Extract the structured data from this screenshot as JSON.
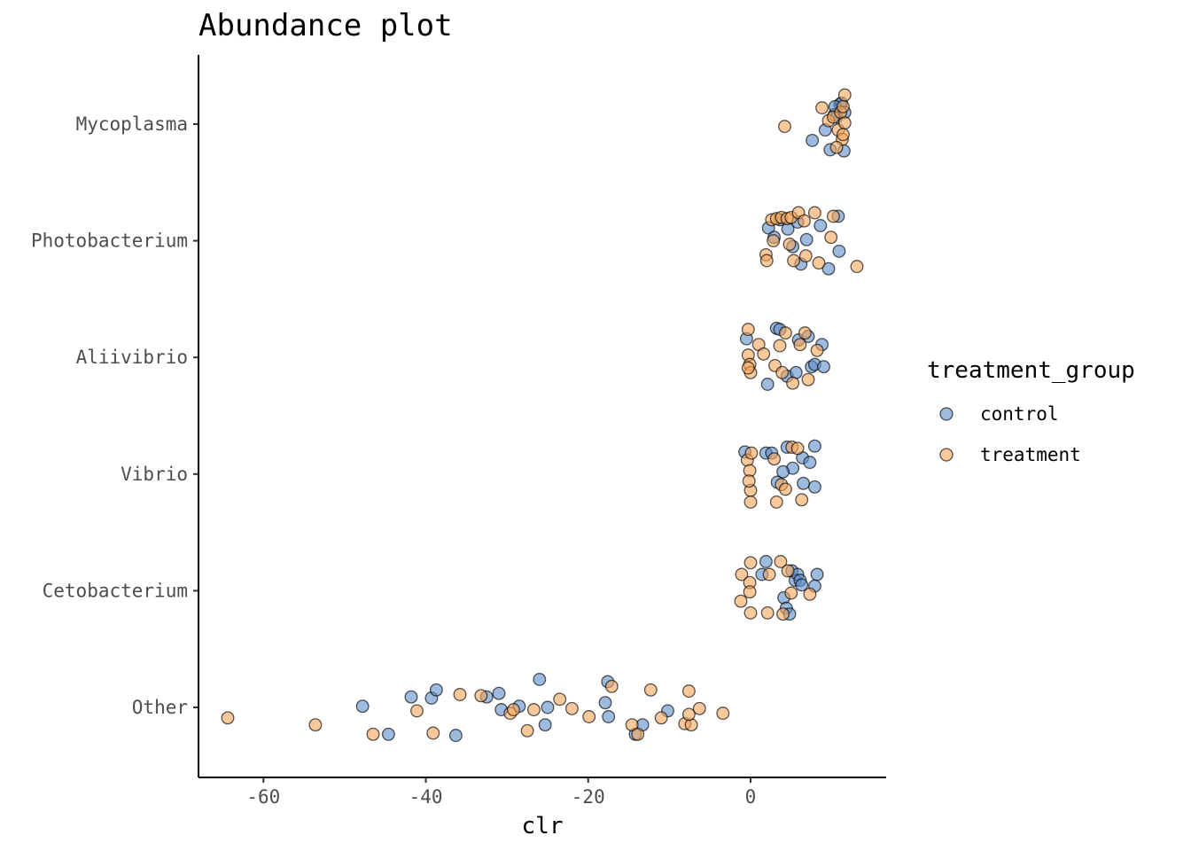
{
  "chart_data": {
    "type": "scatter",
    "title": "Abundance plot",
    "xlabel": "clr",
    "ylabel": "",
    "xlim": [
      -68,
      16.7
    ],
    "x_ticks": [
      -60,
      -40,
      -20,
      0
    ],
    "x_tick_labels": [
      "-60",
      "-40",
      "-20",
      "0"
    ],
    "categories": [
      "Mycoplasma",
      "Photobacterium",
      "Aliivibrio",
      "Vibrio",
      "Cetobacterium",
      "Other"
    ],
    "grid": false,
    "legend": {
      "title": "treatment_group",
      "position": "right"
    },
    "note": "y is jittered within each category (offset in category units)",
    "series": [
      {
        "name": "control",
        "color": "#5b8cc9",
        "points": [
          {
            "category": "Mycoplasma",
            "x": 7.6,
            "y": -0.14
          },
          {
            "category": "Mycoplasma",
            "x": 9.2,
            "y": -0.05
          },
          {
            "category": "Mycoplasma",
            "x": 9.8,
            "y": -0.22
          },
          {
            "category": "Mycoplasma",
            "x": 10.3,
            "y": 0.08
          },
          {
            "category": "Mycoplasma",
            "x": 10.6,
            "y": 0.06
          },
          {
            "category": "Mycoplasma",
            "x": 11.0,
            "y": 0.17
          },
          {
            "category": "Mycoplasma",
            "x": 11.2,
            "y": 0.18
          },
          {
            "category": "Mycoplasma",
            "x": 11.5,
            "y": -0.23
          },
          {
            "category": "Mycoplasma",
            "x": 10.4,
            "y": 0.15
          },
          {
            "category": "Mycoplasma",
            "x": 11.6,
            "y": 0.1
          },
          {
            "category": "Photobacterium",
            "x": 2.2,
            "y": 0.11
          },
          {
            "category": "Photobacterium",
            "x": 2.9,
            "y": 0.03
          },
          {
            "category": "Photobacterium",
            "x": 3.6,
            "y": 0.18
          },
          {
            "category": "Photobacterium",
            "x": 4.6,
            "y": 0.1
          },
          {
            "category": "Photobacterium",
            "x": 5.2,
            "y": -0.05
          },
          {
            "category": "Photobacterium",
            "x": 5.8,
            "y": 0.16
          },
          {
            "category": "Photobacterium",
            "x": 6.2,
            "y": -0.2
          },
          {
            "category": "Photobacterium",
            "x": 6.9,
            "y": 0.01
          },
          {
            "category": "Photobacterium",
            "x": 8.6,
            "y": 0.13
          },
          {
            "category": "Photobacterium",
            "x": 9.6,
            "y": -0.24
          },
          {
            "category": "Photobacterium",
            "x": 10.9,
            "y": -0.09
          },
          {
            "category": "Photobacterium",
            "x": 10.8,
            "y": 0.21
          },
          {
            "category": "Aliivibrio",
            "x": -0.5,
            "y": 0.16
          },
          {
            "category": "Aliivibrio",
            "x": 2.1,
            "y": -0.23
          },
          {
            "category": "Aliivibrio",
            "x": 3.2,
            "y": 0.25
          },
          {
            "category": "Aliivibrio",
            "x": 3.6,
            "y": 0.24
          },
          {
            "category": "Aliivibrio",
            "x": 4.5,
            "y": -0.16
          },
          {
            "category": "Aliivibrio",
            "x": 5.6,
            "y": -0.13
          },
          {
            "category": "Aliivibrio",
            "x": 5.9,
            "y": 0.15
          },
          {
            "category": "Aliivibrio",
            "x": 7.5,
            "y": -0.08
          },
          {
            "category": "Aliivibrio",
            "x": 7.9,
            "y": -0.06
          },
          {
            "category": "Aliivibrio",
            "x": 8.8,
            "y": 0.11
          },
          {
            "category": "Aliivibrio",
            "x": 9.0,
            "y": -0.08
          },
          {
            "category": "Aliivibrio",
            "x": 7.1,
            "y": 0.18
          },
          {
            "category": "Vibrio",
            "x": -0.7,
            "y": 0.19
          },
          {
            "category": "Vibrio",
            "x": 1.9,
            "y": 0.18
          },
          {
            "category": "Vibrio",
            "x": 2.6,
            "y": 0.18
          },
          {
            "category": "Vibrio",
            "x": 3.3,
            "y": -0.07
          },
          {
            "category": "Vibrio",
            "x": 4.5,
            "y": 0.23
          },
          {
            "category": "Vibrio",
            "x": 5.2,
            "y": 0.05
          },
          {
            "category": "Vibrio",
            "x": 6.4,
            "y": 0.14
          },
          {
            "category": "Vibrio",
            "x": 6.5,
            "y": -0.08
          },
          {
            "category": "Vibrio",
            "x": 7.3,
            "y": 0.1
          },
          {
            "category": "Vibrio",
            "x": 7.9,
            "y": 0.24
          },
          {
            "category": "Vibrio",
            "x": 7.9,
            "y": -0.11
          },
          {
            "category": "Vibrio",
            "x": 4.0,
            "y": 0.02
          },
          {
            "category": "Cetobacterium",
            "x": 1.9,
            "y": 0.25
          },
          {
            "category": "Cetobacterium",
            "x": 1.4,
            "y": 0.14
          },
          {
            "category": "Cetobacterium",
            "x": 4.1,
            "y": -0.06
          },
          {
            "category": "Cetobacterium",
            "x": 4.4,
            "y": -0.15
          },
          {
            "category": "Cetobacterium",
            "x": 4.8,
            "y": -0.2
          },
          {
            "category": "Cetobacterium",
            "x": 5.1,
            "y": 0.17
          },
          {
            "category": "Cetobacterium",
            "x": 5.5,
            "y": 0.09
          },
          {
            "category": "Cetobacterium",
            "x": 5.8,
            "y": 0.14
          },
          {
            "category": "Cetobacterium",
            "x": 6.1,
            "y": 0.09
          },
          {
            "category": "Cetobacterium",
            "x": 6.3,
            "y": 0.05
          },
          {
            "category": "Cetobacterium",
            "x": 8.2,
            "y": 0.14
          },
          {
            "category": "Cetobacterium",
            "x": 7.9,
            "y": 0.04
          },
          {
            "category": "Other",
            "x": -47.8,
            "y": 0.01
          },
          {
            "category": "Other",
            "x": -44.6,
            "y": -0.23
          },
          {
            "category": "Other",
            "x": -41.8,
            "y": 0.09
          },
          {
            "category": "Other",
            "x": -39.3,
            "y": 0.08
          },
          {
            "category": "Other",
            "x": -38.7,
            "y": 0.15
          },
          {
            "category": "Other",
            "x": -36.3,
            "y": -0.24
          },
          {
            "category": "Other",
            "x": -32.5,
            "y": 0.09
          },
          {
            "category": "Other",
            "x": -31.0,
            "y": 0.12
          },
          {
            "category": "Other",
            "x": -30.7,
            "y": -0.02
          },
          {
            "category": "Other",
            "x": -28.5,
            "y": 0.01
          },
          {
            "category": "Other",
            "x": -26.0,
            "y": 0.24
          },
          {
            "category": "Other",
            "x": -25.3,
            "y": -0.15
          },
          {
            "category": "Other",
            "x": -25.0,
            "y": 0.0
          },
          {
            "category": "Other",
            "x": -17.9,
            "y": 0.04
          },
          {
            "category": "Other",
            "x": -17.6,
            "y": 0.22
          },
          {
            "category": "Other",
            "x": -17.5,
            "y": -0.08
          },
          {
            "category": "Other",
            "x": -14.2,
            "y": -0.23
          },
          {
            "category": "Other",
            "x": -13.3,
            "y": -0.15
          },
          {
            "category": "Other",
            "x": -10.2,
            "y": -0.03
          }
        ]
      },
      {
        "name": "treatment",
        "color": "#f5a55a",
        "points": [
          {
            "category": "Mycoplasma",
            "x": 4.2,
            "y": -0.02
          },
          {
            "category": "Mycoplasma",
            "x": 8.8,
            "y": 0.14
          },
          {
            "category": "Mycoplasma",
            "x": 9.6,
            "y": 0.03
          },
          {
            "category": "Mycoplasma",
            "x": 10.2,
            "y": 0.06
          },
          {
            "category": "Mycoplasma",
            "x": 10.8,
            "y": -0.05
          },
          {
            "category": "Mycoplasma",
            "x": 11.1,
            "y": 0.1
          },
          {
            "category": "Mycoplasma",
            "x": 11.4,
            "y": 0.15
          },
          {
            "category": "Mycoplasma",
            "x": 11.6,
            "y": 0.25
          },
          {
            "category": "Mycoplasma",
            "x": 11.3,
            "y": -0.13
          },
          {
            "category": "Mycoplasma",
            "x": 10.6,
            "y": -0.2
          },
          {
            "category": "Mycoplasma",
            "x": 11.6,
            "y": 0.01
          },
          {
            "category": "Mycoplasma",
            "x": 11.4,
            "y": -0.09
          },
          {
            "category": "Photobacterium",
            "x": 1.9,
            "y": -0.12
          },
          {
            "category": "Photobacterium",
            "x": 2.0,
            "y": -0.17
          },
          {
            "category": "Photobacterium",
            "x": 2.6,
            "y": 0.18
          },
          {
            "category": "Photobacterium",
            "x": 3.2,
            "y": 0.19
          },
          {
            "category": "Photobacterium",
            "x": 3.8,
            "y": 0.2
          },
          {
            "category": "Photobacterium",
            "x": 4.5,
            "y": 0.19
          },
          {
            "category": "Photobacterium",
            "x": 5.0,
            "y": 0.2
          },
          {
            "category": "Photobacterium",
            "x": 2.8,
            "y": 0.0
          },
          {
            "category": "Photobacterium",
            "x": 5.3,
            "y": -0.17
          },
          {
            "category": "Photobacterium",
            "x": 5.9,
            "y": 0.24
          },
          {
            "category": "Photobacterium",
            "x": 6.6,
            "y": 0.17
          },
          {
            "category": "Photobacterium",
            "x": 6.8,
            "y": -0.13
          },
          {
            "category": "Photobacterium",
            "x": 7.9,
            "y": 0.24
          },
          {
            "category": "Photobacterium",
            "x": 8.4,
            "y": -0.19
          },
          {
            "category": "Photobacterium",
            "x": 9.9,
            "y": 0.03
          },
          {
            "category": "Photobacterium",
            "x": 10.2,
            "y": 0.21
          },
          {
            "category": "Photobacterium",
            "x": 13.1,
            "y": -0.22
          },
          {
            "category": "Photobacterium",
            "x": 4.8,
            "y": -0.03
          },
          {
            "category": "Aliivibrio",
            "x": -0.3,
            "y": 0.24
          },
          {
            "category": "Aliivibrio",
            "x": -0.3,
            "y": 0.02
          },
          {
            "category": "Aliivibrio",
            "x": -0.1,
            "y": -0.06
          },
          {
            "category": "Aliivibrio",
            "x": 0.0,
            "y": -0.13
          },
          {
            "category": "Aliivibrio",
            "x": 1.0,
            "y": 0.11
          },
          {
            "category": "Aliivibrio",
            "x": 1.6,
            "y": 0.03
          },
          {
            "category": "Aliivibrio",
            "x": 3.0,
            "y": -0.07
          },
          {
            "category": "Aliivibrio",
            "x": 3.6,
            "y": 0.1
          },
          {
            "category": "Aliivibrio",
            "x": 3.9,
            "y": -0.13
          },
          {
            "category": "Aliivibrio",
            "x": 4.3,
            "y": 0.21
          },
          {
            "category": "Aliivibrio",
            "x": 5.2,
            "y": -0.22
          },
          {
            "category": "Aliivibrio",
            "x": 6.1,
            "y": 0.11
          },
          {
            "category": "Aliivibrio",
            "x": 6.7,
            "y": 0.21
          },
          {
            "category": "Aliivibrio",
            "x": 7.1,
            "y": -0.19
          },
          {
            "category": "Aliivibrio",
            "x": 8.2,
            "y": 0.06
          },
          {
            "category": "Aliivibrio",
            "x": -0.3,
            "y": -0.09
          },
          {
            "category": "Vibrio",
            "x": -0.4,
            "y": 0.12
          },
          {
            "category": "Vibrio",
            "x": -0.1,
            "y": 0.03
          },
          {
            "category": "Vibrio",
            "x": 0.0,
            "y": -0.14
          },
          {
            "category": "Vibrio",
            "x": 0.0,
            "y": -0.24
          },
          {
            "category": "Vibrio",
            "x": -0.2,
            "y": -0.06
          },
          {
            "category": "Vibrio",
            "x": 2.9,
            "y": 0.13
          },
          {
            "category": "Vibrio",
            "x": 3.2,
            "y": -0.24
          },
          {
            "category": "Vibrio",
            "x": 3.8,
            "y": -0.09
          },
          {
            "category": "Vibrio",
            "x": 4.3,
            "y": -0.13
          },
          {
            "category": "Vibrio",
            "x": 5.1,
            "y": 0.23
          },
          {
            "category": "Vibrio",
            "x": 5.8,
            "y": 0.22
          },
          {
            "category": "Vibrio",
            "x": 6.3,
            "y": -0.22
          },
          {
            "category": "Vibrio",
            "x": 0.1,
            "y": 0.18
          },
          {
            "category": "Cetobacterium",
            "x": -1.1,
            "y": 0.14
          },
          {
            "category": "Cetobacterium",
            "x": -0.1,
            "y": 0.07
          },
          {
            "category": "Cetobacterium",
            "x": 0.0,
            "y": 0.24
          },
          {
            "category": "Cetobacterium",
            "x": 0.0,
            "y": -0.19
          },
          {
            "category": "Cetobacterium",
            "x": -0.1,
            "y": -0.01
          },
          {
            "category": "Cetobacterium",
            "x": 2.1,
            "y": -0.19
          },
          {
            "category": "Cetobacterium",
            "x": 2.3,
            "y": 0.14
          },
          {
            "category": "Cetobacterium",
            "x": 3.7,
            "y": 0.25
          },
          {
            "category": "Cetobacterium",
            "x": 4.0,
            "y": -0.2
          },
          {
            "category": "Cetobacterium",
            "x": 4.6,
            "y": 0.17
          },
          {
            "category": "Cetobacterium",
            "x": 5.0,
            "y": -0.02
          },
          {
            "category": "Cetobacterium",
            "x": 7.3,
            "y": -0.03
          },
          {
            "category": "Cetobacterium",
            "x": -1.2,
            "y": -0.09
          },
          {
            "category": "Other",
            "x": -64.4,
            "y": -0.09
          },
          {
            "category": "Other",
            "x": -53.6,
            "y": -0.15
          },
          {
            "category": "Other",
            "x": -46.5,
            "y": -0.23
          },
          {
            "category": "Other",
            "x": -41.1,
            "y": -0.03
          },
          {
            "category": "Other",
            "x": -39.1,
            "y": -0.22
          },
          {
            "category": "Other",
            "x": -35.8,
            "y": 0.11
          },
          {
            "category": "Other",
            "x": -33.2,
            "y": 0.1
          },
          {
            "category": "Other",
            "x": -29.6,
            "y": -0.05
          },
          {
            "category": "Other",
            "x": -29.2,
            "y": -0.02
          },
          {
            "category": "Other",
            "x": -27.5,
            "y": -0.2
          },
          {
            "category": "Other",
            "x": -26.7,
            "y": -0.02
          },
          {
            "category": "Other",
            "x": -23.5,
            "y": 0.07
          },
          {
            "category": "Other",
            "x": -22.0,
            "y": -0.01
          },
          {
            "category": "Other",
            "x": -19.9,
            "y": -0.08
          },
          {
            "category": "Other",
            "x": -17.1,
            "y": 0.18
          },
          {
            "category": "Other",
            "x": -14.6,
            "y": -0.15
          },
          {
            "category": "Other",
            "x": -13.9,
            "y": -0.23
          },
          {
            "category": "Other",
            "x": -12.3,
            "y": 0.15
          },
          {
            "category": "Other",
            "x": -11.0,
            "y": -0.09
          },
          {
            "category": "Other",
            "x": -7.6,
            "y": 0.14
          },
          {
            "category": "Other",
            "x": -8.1,
            "y": -0.14
          },
          {
            "category": "Other",
            "x": -7.3,
            "y": -0.15
          },
          {
            "category": "Other",
            "x": -7.6,
            "y": -0.06
          },
          {
            "category": "Other",
            "x": -6.3,
            "y": -0.01
          },
          {
            "category": "Other",
            "x": -3.4,
            "y": -0.05
          }
        ]
      }
    ]
  }
}
